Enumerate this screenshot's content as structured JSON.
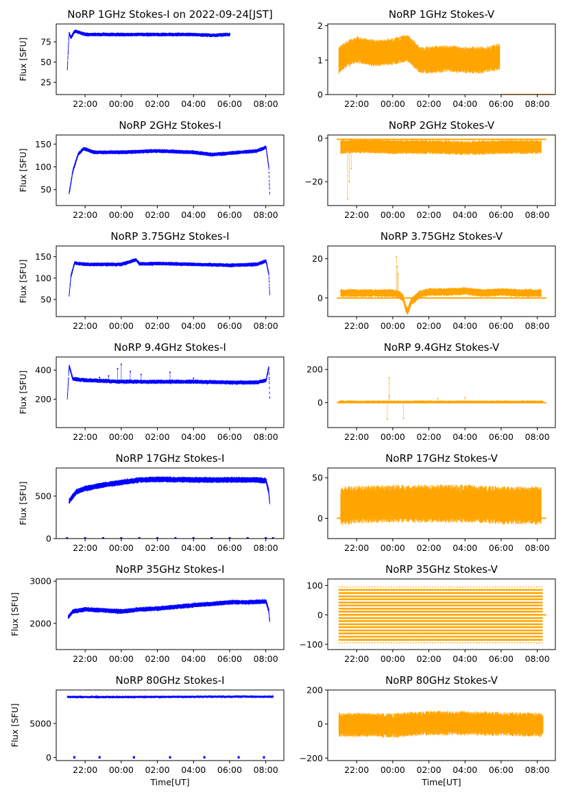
{
  "figure": {
    "x_ticks": [
      "22:00",
      "00:00",
      "02:00",
      "04:00",
      "06:00",
      "08:00"
    ],
    "x_tick_hours": [
      22,
      24,
      26,
      28,
      30,
      32
    ],
    "x_range_hours": [
      20.4,
      33.0
    ],
    "xlabel": "Time[UT]",
    "ylabel": "Flux [SFU]",
    "colors": {
      "stokes_i": "#0000ff",
      "stokes_v": "#ffa500"
    }
  },
  "chart_data": [
    {
      "id": "i-1ghz",
      "type": "scatter",
      "title": "NoRP 1GHz Stokes-I on 2022-09-24[JST]",
      "ylim": [
        10,
        97
      ],
      "yticks": [
        25,
        50,
        75
      ],
      "ytick_labels": [
        "25",
        "50",
        "75"
      ],
      "series": [
        {
          "name": "1GHz Stokes-I",
          "color": "#0000ff",
          "x": [
            21.0,
            21.05,
            21.1,
            21.2,
            21.4,
            21.6,
            22.0,
            23.0,
            24.0,
            25.0,
            26.0,
            27.0,
            28.0,
            29.0,
            30.0
          ],
          "y": [
            42,
            65,
            86,
            80,
            88,
            87,
            84,
            84,
            84,
            84,
            84,
            84,
            84,
            83,
            84
          ],
          "spread": 1.5
        }
      ]
    },
    {
      "id": "v-1ghz",
      "type": "scatter",
      "title": "NoRP 1GHz Stokes-V",
      "ylim": [
        0,
        2.05
      ],
      "yticks": [
        0,
        1,
        2
      ],
      "ytick_labels": [
        "0",
        "1",
        "2"
      ],
      "series": [
        {
          "name": "1GHz Stokes-V",
          "color": "#ffa500",
          "x": [
            21.0,
            21.5,
            22.0,
            23.0,
            24.0,
            24.8,
            25.5,
            26.0,
            27.0,
            28.0,
            29.0,
            29.9
          ],
          "y": [
            1.0,
            1.2,
            1.3,
            1.2,
            1.25,
            1.35,
            1.0,
            1.0,
            1.05,
            1.0,
            1.0,
            1.1
          ],
          "spread": 0.3,
          "baseline": {
            "x_start": 30.0,
            "x_end": 32.9,
            "y": 0.0
          }
        }
      ]
    },
    {
      "id": "i-2ghz",
      "type": "scatter",
      "title": "NoRP 2GHz Stokes-I",
      "ylim": [
        15,
        170
      ],
      "yticks": [
        50,
        100,
        150
      ],
      "ytick_labels": [
        "50",
        "100",
        "150"
      ],
      "series": [
        {
          "name": "2GHz Stokes-I",
          "color": "#0000ff",
          "x": [
            21.1,
            21.3,
            21.6,
            21.9,
            22.5,
            24.0,
            26.0,
            28.0,
            29.0,
            30.0,
            31.5,
            32.0,
            32.15,
            32.2
          ],
          "y": [
            42,
            90,
            128,
            140,
            132,
            132,
            135,
            132,
            127,
            130,
            135,
            143,
            100,
            42
          ],
          "spread": 3
        }
      ]
    },
    {
      "id": "v-2ghz",
      "type": "scatter",
      "title": "NoRP 2GHz Stokes-V",
      "ylim": [
        -31,
        1.5
      ],
      "yticks": [
        -20,
        0
      ],
      "ytick_labels": [
        "−20",
        "0"
      ],
      "series": [
        {
          "name": "2GHz Stokes-V",
          "color": "#ffa500",
          "x": [
            21.1,
            22.0,
            24.0,
            26.0,
            28.0,
            30.0,
            32.0,
            32.2
          ],
          "y": [
            -4,
            -3.5,
            -4,
            -4,
            -4.5,
            -4,
            -4,
            -4
          ],
          "spread": 2.5,
          "outliers": [
            [
              21.5,
              -28
            ],
            [
              21.6,
              -20
            ],
            [
              21.7,
              -14
            ]
          ],
          "baseline": {
            "x_start": 20.9,
            "x_end": 32.5,
            "y": -0.5
          }
        }
      ]
    },
    {
      "id": "i-3ghz",
      "type": "scatter",
      "title": "NoRP 3.75GHz Stokes-I",
      "ylim": [
        10,
        175
      ],
      "yticks": [
        50,
        100,
        150
      ],
      "ytick_labels": [
        "50",
        "100",
        "150"
      ],
      "series": [
        {
          "name": "3.75GHz Stokes-I",
          "color": "#0000ff",
          "x": [
            21.1,
            21.2,
            21.4,
            22.0,
            23.0,
            24.0,
            24.6,
            24.8,
            25.0,
            26.0,
            28.0,
            30.0,
            31.5,
            32.0,
            32.15,
            32.2
          ],
          "y": [
            60,
            105,
            135,
            132,
            132,
            132,
            140,
            143,
            133,
            134,
            132,
            130,
            132,
            140,
            110,
            62
          ],
          "spread": 3
        }
      ]
    },
    {
      "id": "v-3ghz",
      "type": "scatter",
      "title": "NoRP 3.75GHz Stokes-V",
      "ylim": [
        -9.5,
        26.5
      ],
      "yticks": [
        0,
        20
      ],
      "ytick_labels": [
        "0",
        "20"
      ],
      "series": [
        {
          "name": "3.75GHz Stokes-V",
          "color": "#ffa500",
          "x": [
            21.1,
            22.0,
            23.0,
            24.0,
            24.3,
            24.55,
            24.7,
            24.8,
            25.0,
            25.5,
            26.0,
            27.0,
            28.0,
            29.0,
            30.0,
            31.0,
            32.2
          ],
          "y": [
            2.5,
            2.5,
            2.5,
            2.5,
            2,
            0,
            -5,
            -7,
            -2,
            2,
            3,
            3,
            3.5,
            2.5,
            3,
            2.5,
            2.5
          ],
          "spread": 1.5,
          "outliers": [
            [
              24.2,
              21
            ],
            [
              24.25,
              16
            ],
            [
              24.3,
              12
            ]
          ],
          "baseline": {
            "x_start": 20.9,
            "x_end": 32.5,
            "y": 0.0
          }
        }
      ]
    },
    {
      "id": "i-9ghz",
      "type": "scatter",
      "title": "NoRP 9.4GHz Stokes-I",
      "ylim": [
        5,
        490
      ],
      "yticks": [
        200,
        400
      ],
      "ytick_labels": [
        "200",
        "400"
      ],
      "series": [
        {
          "name": "9.4GHz Stokes-I",
          "color": "#0000ff",
          "x": [
            21.0,
            21.1,
            21.3,
            22.0,
            24.0,
            26.0,
            28.0,
            30.0,
            31.5,
            32.0,
            32.15,
            32.2
          ],
          "y": [
            205,
            430,
            340,
            330,
            320,
            320,
            320,
            315,
            315,
            330,
            420,
            210
          ],
          "spread": 10,
          "outliers": [
            [
              22.8,
              350
            ],
            [
              23.8,
              410
            ],
            [
              24.0,
              440
            ],
            [
              24.5,
              390
            ],
            [
              25.1,
              370
            ],
            [
              26.7,
              385
            ],
            [
              23.3,
              360
            ],
            [
              28.0,
              345
            ]
          ]
        }
      ]
    },
    {
      "id": "v-9ghz",
      "type": "scatter",
      "title": "NoRP 9.4GHz Stokes-V",
      "ylim": [
        -150,
        275
      ],
      "yticks": [
        0,
        200
      ],
      "ytick_labels": [
        "0",
        "200"
      ],
      "series": [
        {
          "name": "9.4GHz Stokes-V",
          "color": "#ffa500",
          "x": [
            21.0,
            22.0,
            24.0,
            26.0,
            28.0,
            30.0,
            32.3
          ],
          "y": [
            5,
            5,
            5,
            5,
            5,
            5,
            5
          ],
          "spread": 5,
          "outliers": [
            [
              23.8,
              150
            ],
            [
              23.7,
              -100
            ],
            [
              24.6,
              -95
            ],
            [
              23.8,
              40
            ],
            [
              26.5,
              25
            ],
            [
              28.0,
              30
            ]
          ],
          "baseline": {
            "x_start": 20.9,
            "x_end": 32.5,
            "y": 0.0
          }
        }
      ]
    },
    {
      "id": "i-17ghz",
      "type": "scatter",
      "title": "NoRP 17GHz Stokes-I",
      "ylim": [
        0,
        830
      ],
      "yticks": [
        0,
        500
      ],
      "ytick_labels": [
        "0",
        "500"
      ],
      "series": [
        {
          "name": "17GHz Stokes-I",
          "color": "#0000ff",
          "x": [
            21.1,
            21.5,
            22.0,
            23.0,
            24.0,
            25.0,
            26.0,
            28.0,
            30.0,
            31.5,
            32.0,
            32.15,
            32.2
          ],
          "y": [
            440,
            550,
            590,
            630,
            660,
            690,
            695,
            690,
            690,
            690,
            680,
            550,
            420
          ],
          "spread": 25,
          "markers": {
            "y": 0,
            "x": [
              21.0,
              22.0,
              23.0,
              24.0,
              25.0,
              26.0,
              27.0,
              28.0,
              29.0,
              30.0,
              31.0,
              32.0,
              32.4
            ]
          }
        }
      ]
    },
    {
      "id": "v-17ghz",
      "type": "scatter",
      "title": "NoRP 17GHz Stokes-V",
      "ylim": [
        -25,
        62
      ],
      "yticks": [
        0,
        50
      ],
      "ytick_labels": [
        "0",
        "50"
      ],
      "series": [
        {
          "name": "17GHz Stokes-V",
          "color": "#ffa500",
          "x": [
            21.1,
            22.0,
            24.0,
            26.0,
            28.0,
            30.0,
            32.2
          ],
          "y": [
            15,
            17,
            18,
            18,
            18,
            16,
            16
          ],
          "spread": 18,
          "baseline": {
            "x_start": 20.9,
            "x_end": 32.5,
            "y": 0.0
          }
        }
      ]
    },
    {
      "id": "i-35ghz",
      "type": "scatter",
      "title": "NoRP 35GHz Stokes-I",
      "ylim": [
        1380,
        3050
      ],
      "yticks": [
        2000,
        3000
      ],
      "ytick_labels": [
        "2000",
        "3000"
      ],
      "series": [
        {
          "name": "35GHz Stokes-I",
          "color": "#0000ff",
          "x": [
            21.05,
            21.3,
            22.0,
            23.0,
            24.0,
            25.0,
            26.0,
            27.0,
            28.0,
            29.0,
            30.0,
            31.0,
            32.0,
            32.15,
            32.2
          ],
          "y": [
            2150,
            2280,
            2330,
            2310,
            2280,
            2330,
            2350,
            2390,
            2430,
            2460,
            2500,
            2500,
            2520,
            2300,
            2050
          ],
          "spread": 40
        }
      ]
    },
    {
      "id": "v-35ghz",
      "type": "scatter",
      "title": "NoRP 35GHz Stokes-V",
      "ylim": [
        -118,
        122
      ],
      "yticks": [
        -100,
        0,
        100
      ],
      "ytick_labels": [
        "−100",
        "0",
        "100"
      ],
      "series": [
        {
          "name": "35GHz Stokes-V",
          "color": "#ffa500",
          "bands": {
            "x_start": 21.0,
            "x_end": 32.3,
            "y": [
              -95,
              -85,
              -74,
              -63,
              -53,
              -42,
              -32,
              -21,
              -11,
              0,
              11,
              21,
              32,
              42,
              53,
              63,
              74,
              85,
              95
            ]
          }
        }
      ]
    },
    {
      "id": "i-80ghz",
      "type": "scatter",
      "title": "NoRP 80GHz Stokes-I",
      "ylim": [
        -450,
        9900
      ],
      "yticks": [
        0,
        5000
      ],
      "ytick_labels": [
        "0",
        "5000"
      ],
      "xlabel": "Time[UT]",
      "series": [
        {
          "name": "80GHz Stokes-I",
          "color": "#0000ff",
          "x": [
            21.0,
            24.0,
            27.0,
            30.0,
            32.4
          ],
          "y": [
            8900,
            8900,
            8920,
            8950,
            8950
          ],
          "spread": 80,
          "markers": {
            "y": 0,
            "x": [
              21.4,
              22.8,
              24.7,
              26.7,
              28.6,
              30.5,
              31.9
            ]
          }
        }
      ]
    },
    {
      "id": "v-80ghz",
      "type": "scatter",
      "title": "NoRP 80GHz Stokes-V",
      "ylim": [
        -215,
        200
      ],
      "yticks": [
        -200,
        0,
        200
      ],
      "ytick_labels": [
        "−200",
        "0",
        "200"
      ],
      "xlabel": "Time[UT]",
      "series": [
        {
          "name": "80GHz Stokes-V",
          "color": "#ffa500",
          "x": [
            21.0,
            22.0,
            23.0,
            24.0,
            25.0,
            26.0,
            28.0,
            30.0,
            32.3
          ],
          "y": [
            -5,
            -5,
            -5,
            -10,
            0,
            5,
            5,
            0,
            -5
          ],
          "spread": 55
        }
      ]
    }
  ]
}
